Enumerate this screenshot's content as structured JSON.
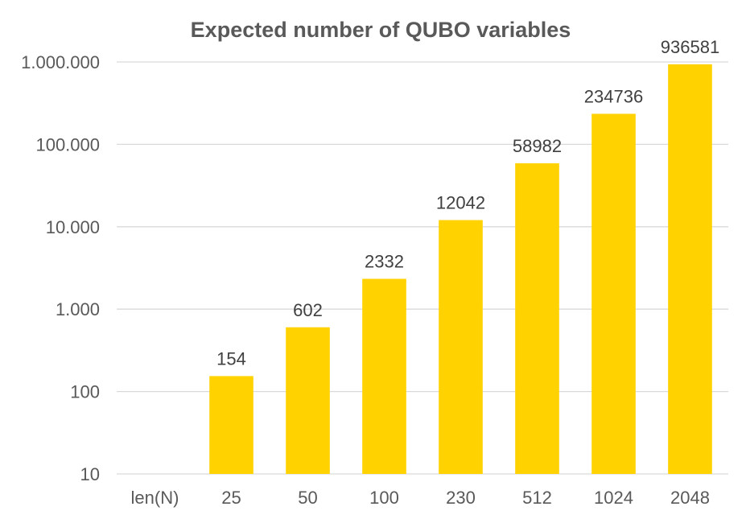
{
  "chart_data": {
    "type": "bar",
    "title": "Expected number of QUBO variables",
    "xlabel": "",
    "ylabel": "",
    "categories": [
      "len(N)",
      "25",
      "50",
      "100",
      "230",
      "512",
      "1024",
      "2048"
    ],
    "values": [
      null,
      154,
      602,
      2332,
      12042,
      58982,
      234736,
      936581
    ],
    "data_labels": [
      "",
      "154",
      "602",
      "2332",
      "12042",
      "58982",
      "234736",
      "936581"
    ],
    "y_scale": "log",
    "ylim": [
      10,
      1000000
    ],
    "y_ticks": [
      10,
      100,
      1000,
      10000,
      100000,
      1000000
    ],
    "y_tick_labels": [
      "10",
      "100",
      "1.000",
      "10.000",
      "100.000",
      "1.000.000"
    ],
    "grid": true,
    "legend": "none",
    "bar_color": "#FFD200"
  }
}
